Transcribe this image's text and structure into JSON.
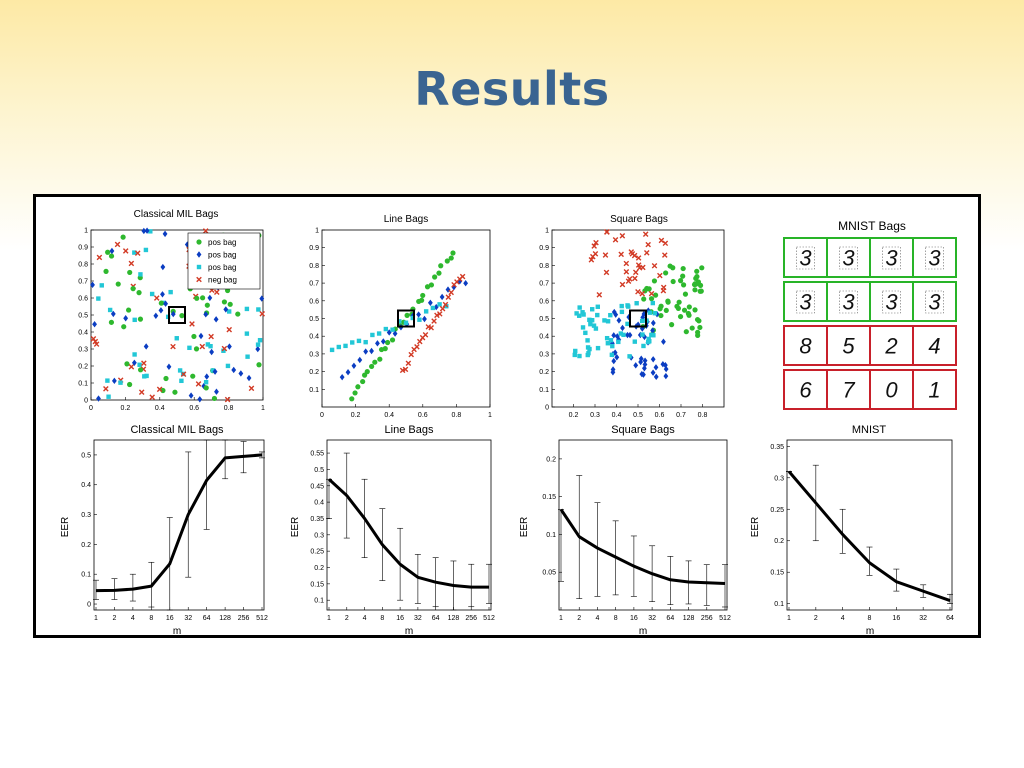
{
  "slide": {
    "title": "Results"
  },
  "colors": {
    "pos1": "#2eb82e",
    "pos2": "#0b3dc2",
    "pos3": "#22c7d6",
    "neg": "#d23a25",
    "good_border": "#28b428",
    "bad_border": "#c8202a",
    "title": "#3a6491"
  },
  "scatter_plots": [
    {
      "title": "Classical MIL Bags",
      "xticks": [
        "0",
        "0.2",
        "0.4",
        "0.6",
        "0.8",
        "1"
      ],
      "yticks": [
        "0",
        "0.1",
        "0.2",
        "0.3",
        "0.4",
        "0.5",
        "0.6",
        "0.7",
        "0.8",
        "0.9",
        "1"
      ],
      "legend": [
        "pos bag",
        "pos bag",
        "pos bag",
        "neg bag"
      ],
      "xlim": [
        0,
        1
      ],
      "ylim": [
        0,
        1
      ],
      "box_center": [
        0.5,
        0.5
      ]
    },
    {
      "title": "Line Bags",
      "xticks": [
        "0",
        "0.2",
        "0.4",
        "0.6",
        "0.8",
        "1"
      ],
      "yticks": [
        "0.1",
        "0.2",
        "0.3",
        "0.4",
        "0.5",
        "0.6",
        "0.7",
        "0.8",
        "0.9",
        "1"
      ],
      "xlim": [
        0,
        1
      ],
      "ylim": [
        0,
        1
      ],
      "box_center": [
        0.5,
        0.5
      ]
    },
    {
      "title": "Square Bags",
      "xticks": [
        "0.2",
        "0.3",
        "0.4",
        "0.5",
        "0.6",
        "0.7",
        "0.8"
      ],
      "yticks": [
        "0",
        "0.1",
        "0.2",
        "0.3",
        "0.4",
        "0.5",
        "0.6",
        "0.7",
        "0.8",
        "0.9",
        "1"
      ],
      "xlim": [
        0.1,
        0.9
      ],
      "ylim": [
        0,
        1
      ],
      "box_center": [
        0.5,
        0.5
      ]
    }
  ],
  "mnist_bags": {
    "title": "MNIST Bags",
    "rows": [
      {
        "label": "pos",
        "digits": [
          "3",
          "3",
          "3",
          "3"
        ]
      },
      {
        "label": "pos",
        "digits": [
          "3",
          "3",
          "3",
          "3"
        ]
      },
      {
        "label": "neg",
        "digits": [
          "8",
          "5",
          "2",
          "4"
        ]
      },
      {
        "label": "neg",
        "digits": [
          "6",
          "7",
          "0",
          "1"
        ]
      }
    ]
  },
  "chart_data": [
    {
      "type": "line",
      "title": "Classical MIL Bags",
      "xlabel": "m",
      "ylabel": "EER",
      "categories": [
        "1",
        "2",
        "4",
        "8",
        "16",
        "32",
        "64",
        "128",
        "256",
        "512"
      ],
      "values": [
        0.045,
        0.046,
        0.05,
        0.06,
        0.135,
        0.3,
        0.415,
        0.49,
        0.495,
        0.5
      ],
      "err_low": [
        0.015,
        0.015,
        0.01,
        -0.01,
        -0.02,
        0.09,
        0.25,
        0.42,
        0.44,
        0.49
      ],
      "err_high": [
        0.08,
        0.085,
        0.1,
        0.14,
        0.29,
        0.51,
        0.57,
        0.56,
        0.545,
        0.51
      ],
      "ylim": [
        -0.02,
        0.55
      ],
      "yticks": [
        "0",
        "0.1",
        "0.2",
        "0.3",
        "0.4",
        "0.5"
      ]
    },
    {
      "type": "line",
      "title": "Line Bags",
      "xlabel": "m",
      "ylabel": "EER",
      "categories": [
        "1",
        "2",
        "4",
        "8",
        "16",
        "32",
        "64",
        "128",
        "256",
        "512"
      ],
      "values": [
        0.47,
        0.42,
        0.35,
        0.27,
        0.21,
        0.17,
        0.155,
        0.145,
        0.14,
        0.14
      ],
      "err_low": [
        0.35,
        0.29,
        0.23,
        0.16,
        0.1,
        0.09,
        0.08,
        0.07,
        0.08,
        0.09
      ],
      "err_high": [
        0.47,
        0.55,
        0.47,
        0.38,
        0.32,
        0.24,
        0.23,
        0.22,
        0.21,
        0.21
      ],
      "ylim": [
        0.07,
        0.59
      ],
      "yticks": [
        "0.1",
        "0.15",
        "0.2",
        "0.25",
        "0.3",
        "0.35",
        "0.4",
        "0.45",
        "0.5",
        "0.55"
      ]
    },
    {
      "type": "line",
      "title": "Square Bags",
      "xlabel": "m",
      "ylabel": "EER",
      "categories": [
        "1",
        "2",
        "4",
        "8",
        "16",
        "32",
        "64",
        "128",
        "256",
        "512"
      ],
      "values": [
        0.133,
        0.097,
        0.082,
        0.07,
        0.058,
        0.048,
        0.04,
        0.037,
        0.036,
        0.035
      ],
      "err_low": [
        0.038,
        0.015,
        0.018,
        0.02,
        0.018,
        0.011,
        0.007,
        0.008,
        0.006,
        0.004
      ],
      "err_high": [
        0.133,
        0.178,
        0.142,
        0.118,
        0.098,
        0.085,
        0.071,
        0.065,
        0.06,
        0.06
      ],
      "ylim": [
        0.0,
        0.225
      ],
      "yticks": [
        "0.05",
        "0.1",
        "0.15",
        "0.2"
      ]
    },
    {
      "type": "line",
      "title": "MNIST",
      "xlabel": "m",
      "ylabel": "EER",
      "categories": [
        "1",
        "2",
        "4",
        "8",
        "16",
        "32",
        "64"
      ],
      "values": [
        0.31,
        0.26,
        0.21,
        0.165,
        0.135,
        0.12,
        0.105
      ],
      "err_low": [
        0.31,
        0.2,
        0.18,
        0.145,
        0.12,
        0.11,
        0.1
      ],
      "err_high": [
        0.31,
        0.32,
        0.25,
        0.19,
        0.155,
        0.13,
        0.115
      ],
      "ylim": [
        0.09,
        0.36
      ],
      "yticks": [
        "0.1",
        "0.15",
        "0.2",
        "0.25",
        "0.3",
        "0.35"
      ]
    }
  ]
}
